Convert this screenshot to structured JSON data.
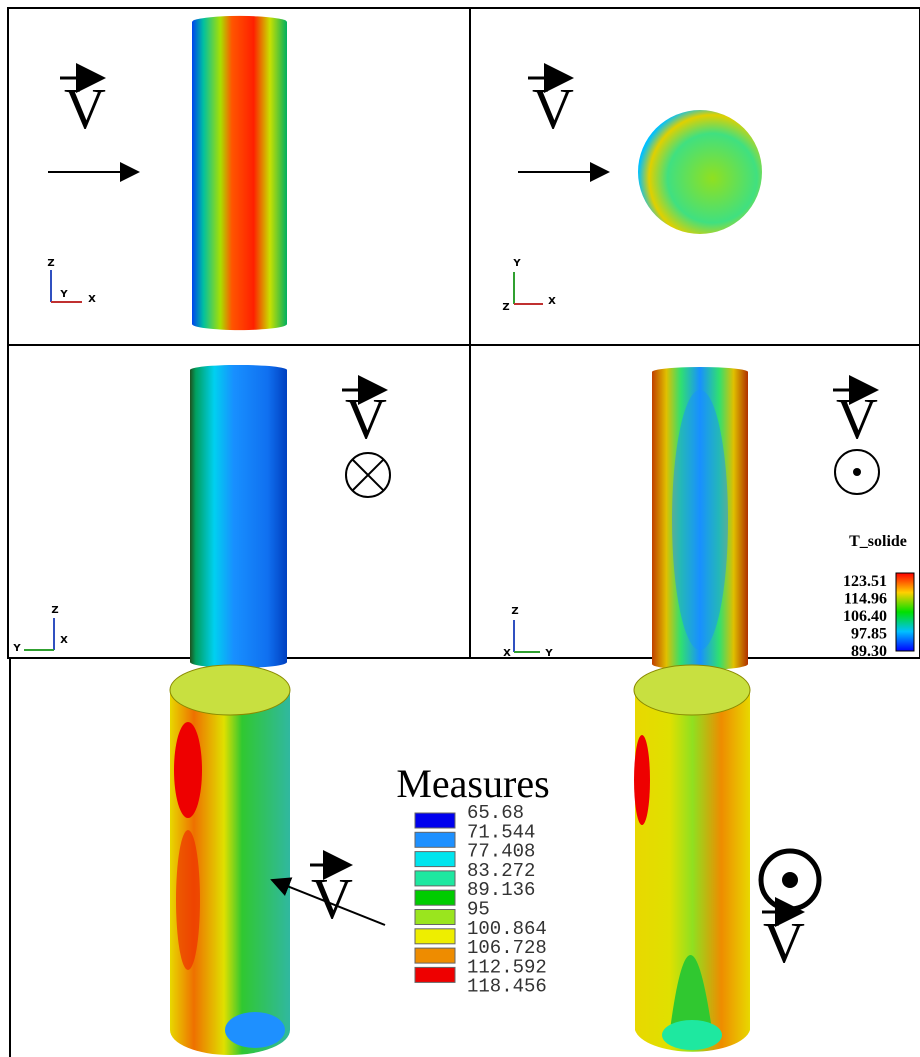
{
  "panels": [
    {
      "vector_label": "V",
      "axes": {
        "up": "Z",
        "mid": "Y",
        "right": "X"
      }
    },
    {
      "vector_label": "V",
      "axes": {
        "up": "Y",
        "mid": "Z",
        "right": "X"
      }
    },
    {
      "vector_label": "V",
      "axes": {
        "up": "Z",
        "left": "Y",
        "right": "X"
      }
    },
    {
      "vector_label": "V",
      "axes": {
        "up": "Z",
        "left": "X",
        "right": "Y"
      }
    }
  ],
  "colorbar": {
    "title": "T_solide",
    "ticks": [
      "123.51",
      "114.96",
      "106.40",
      "97.85",
      "89.30"
    ]
  },
  "measures": {
    "title": "Measures",
    "legend": [
      {
        "label": "65.68",
        "color": "#0000ee"
      },
      {
        "label": "71.544",
        "color": "#1e90ff"
      },
      {
        "label": "77.408",
        "color": "#00e5ee"
      },
      {
        "label": "83.272",
        "color": "#1ee8a0"
      },
      {
        "label": "89.136",
        "color": "#00cc00"
      },
      {
        "label": "95",
        "color": "#9ae51e"
      },
      {
        "label": "100.864",
        "color": "#eeee00"
      },
      {
        "label": "106.728",
        "color": "#ee8c00"
      },
      {
        "label": "112.592",
        "color": "#ee0000"
      },
      {
        "label": "118.456",
        "color": "#ee0000"
      }
    ],
    "vector_labels": [
      "V",
      "V"
    ]
  }
}
